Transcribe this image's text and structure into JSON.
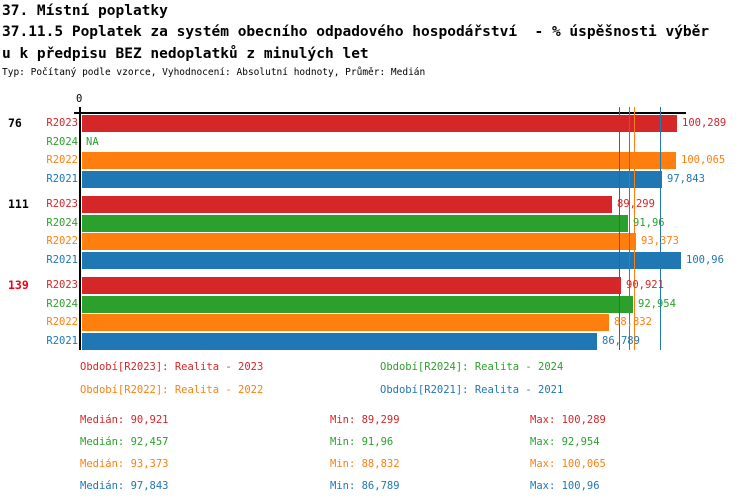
{
  "header": {
    "line1": "37. Místní poplatky",
    "line2": "37.11.5 Poplatek za systém obecního odpadového hospodářství  - % úspěšnosti výběr",
    "line3": "u k předpisu BEZ nedoplatků z minulých let",
    "meta_line": "Typ: Počítaný podle vzorce, Vyhodnocení: Absolutní hodnoty, Průměr: Medián"
  },
  "chart_data": {
    "type": "bar",
    "orientation": "horizontal",
    "title": "37.11.5 Poplatek za systém obecního odpadového hospodářství - % úspěšnosti výběru k předpisu BEZ nedoplatků z minulých let",
    "axis": {
      "min": 0,
      "max": 101.975,
      "zero_tick_label": "0",
      "grid": false
    },
    "na_label": "NA",
    "series": [
      {
        "id": "R2023",
        "color": "#d62728",
        "legend_label": "Období[R2023]: Realita - 2023",
        "median": 90.921,
        "median_display": "90,921",
        "min_display": "89,299",
        "max_display": "100,289"
      },
      {
        "id": "R2024",
        "color": "#2ca02c",
        "legend_label": "Období[R2024]: Realita - 2024",
        "median": 92.457,
        "median_display": "92,457",
        "min_display": "91,96",
        "max_display": "92,954"
      },
      {
        "id": "R2022",
        "color": "#ff7f0e",
        "legend_label": "Období[R2022]: Realita - 2022",
        "median": 93.373,
        "median_display": "93,373",
        "min_display": "88,832",
        "max_display": "100,065"
      },
      {
        "id": "R2021",
        "color": "#1f77b4",
        "legend_label": "Období[R2021]: Realita - 2021",
        "median": 97.843,
        "median_display": "97,843",
        "min_display": "86,789",
        "max_display": "100,96"
      }
    ],
    "groups": [
      {
        "label": "76",
        "label_color": "#000000",
        "values": [
          100.289,
          null,
          100.065,
          97.843
        ],
        "displays": [
          "100,289",
          "NA",
          "100,065",
          "97,843"
        ]
      },
      {
        "label": "111",
        "label_color": "#000000",
        "values": [
          89.299,
          91.96,
          93.373,
          100.96
        ],
        "displays": [
          "89,299",
          "91,96",
          "93,373",
          "100,96"
        ]
      },
      {
        "label": "139",
        "label_color": "#ee0011",
        "values": [
          90.921,
          92.954,
          88.832,
          86.789
        ],
        "displays": [
          "90,921",
          "92,954",
          "88,832",
          "86,789"
        ]
      }
    ],
    "stats_labels": {
      "median": "Medián",
      "min": "Min",
      "max": "Max"
    },
    "legend_position": "bottom",
    "stats_rows": [
      {
        "median": "90,921",
        "min": "89,299",
        "max": "100,289"
      },
      {
        "median": "92,457",
        "min": "91,96",
        "max": "92,954"
      },
      {
        "median": "93,373",
        "min": "88,832",
        "max": "100,065"
      },
      {
        "median": "97,843",
        "min": "86,789",
        "max": "100,96"
      }
    ]
  }
}
